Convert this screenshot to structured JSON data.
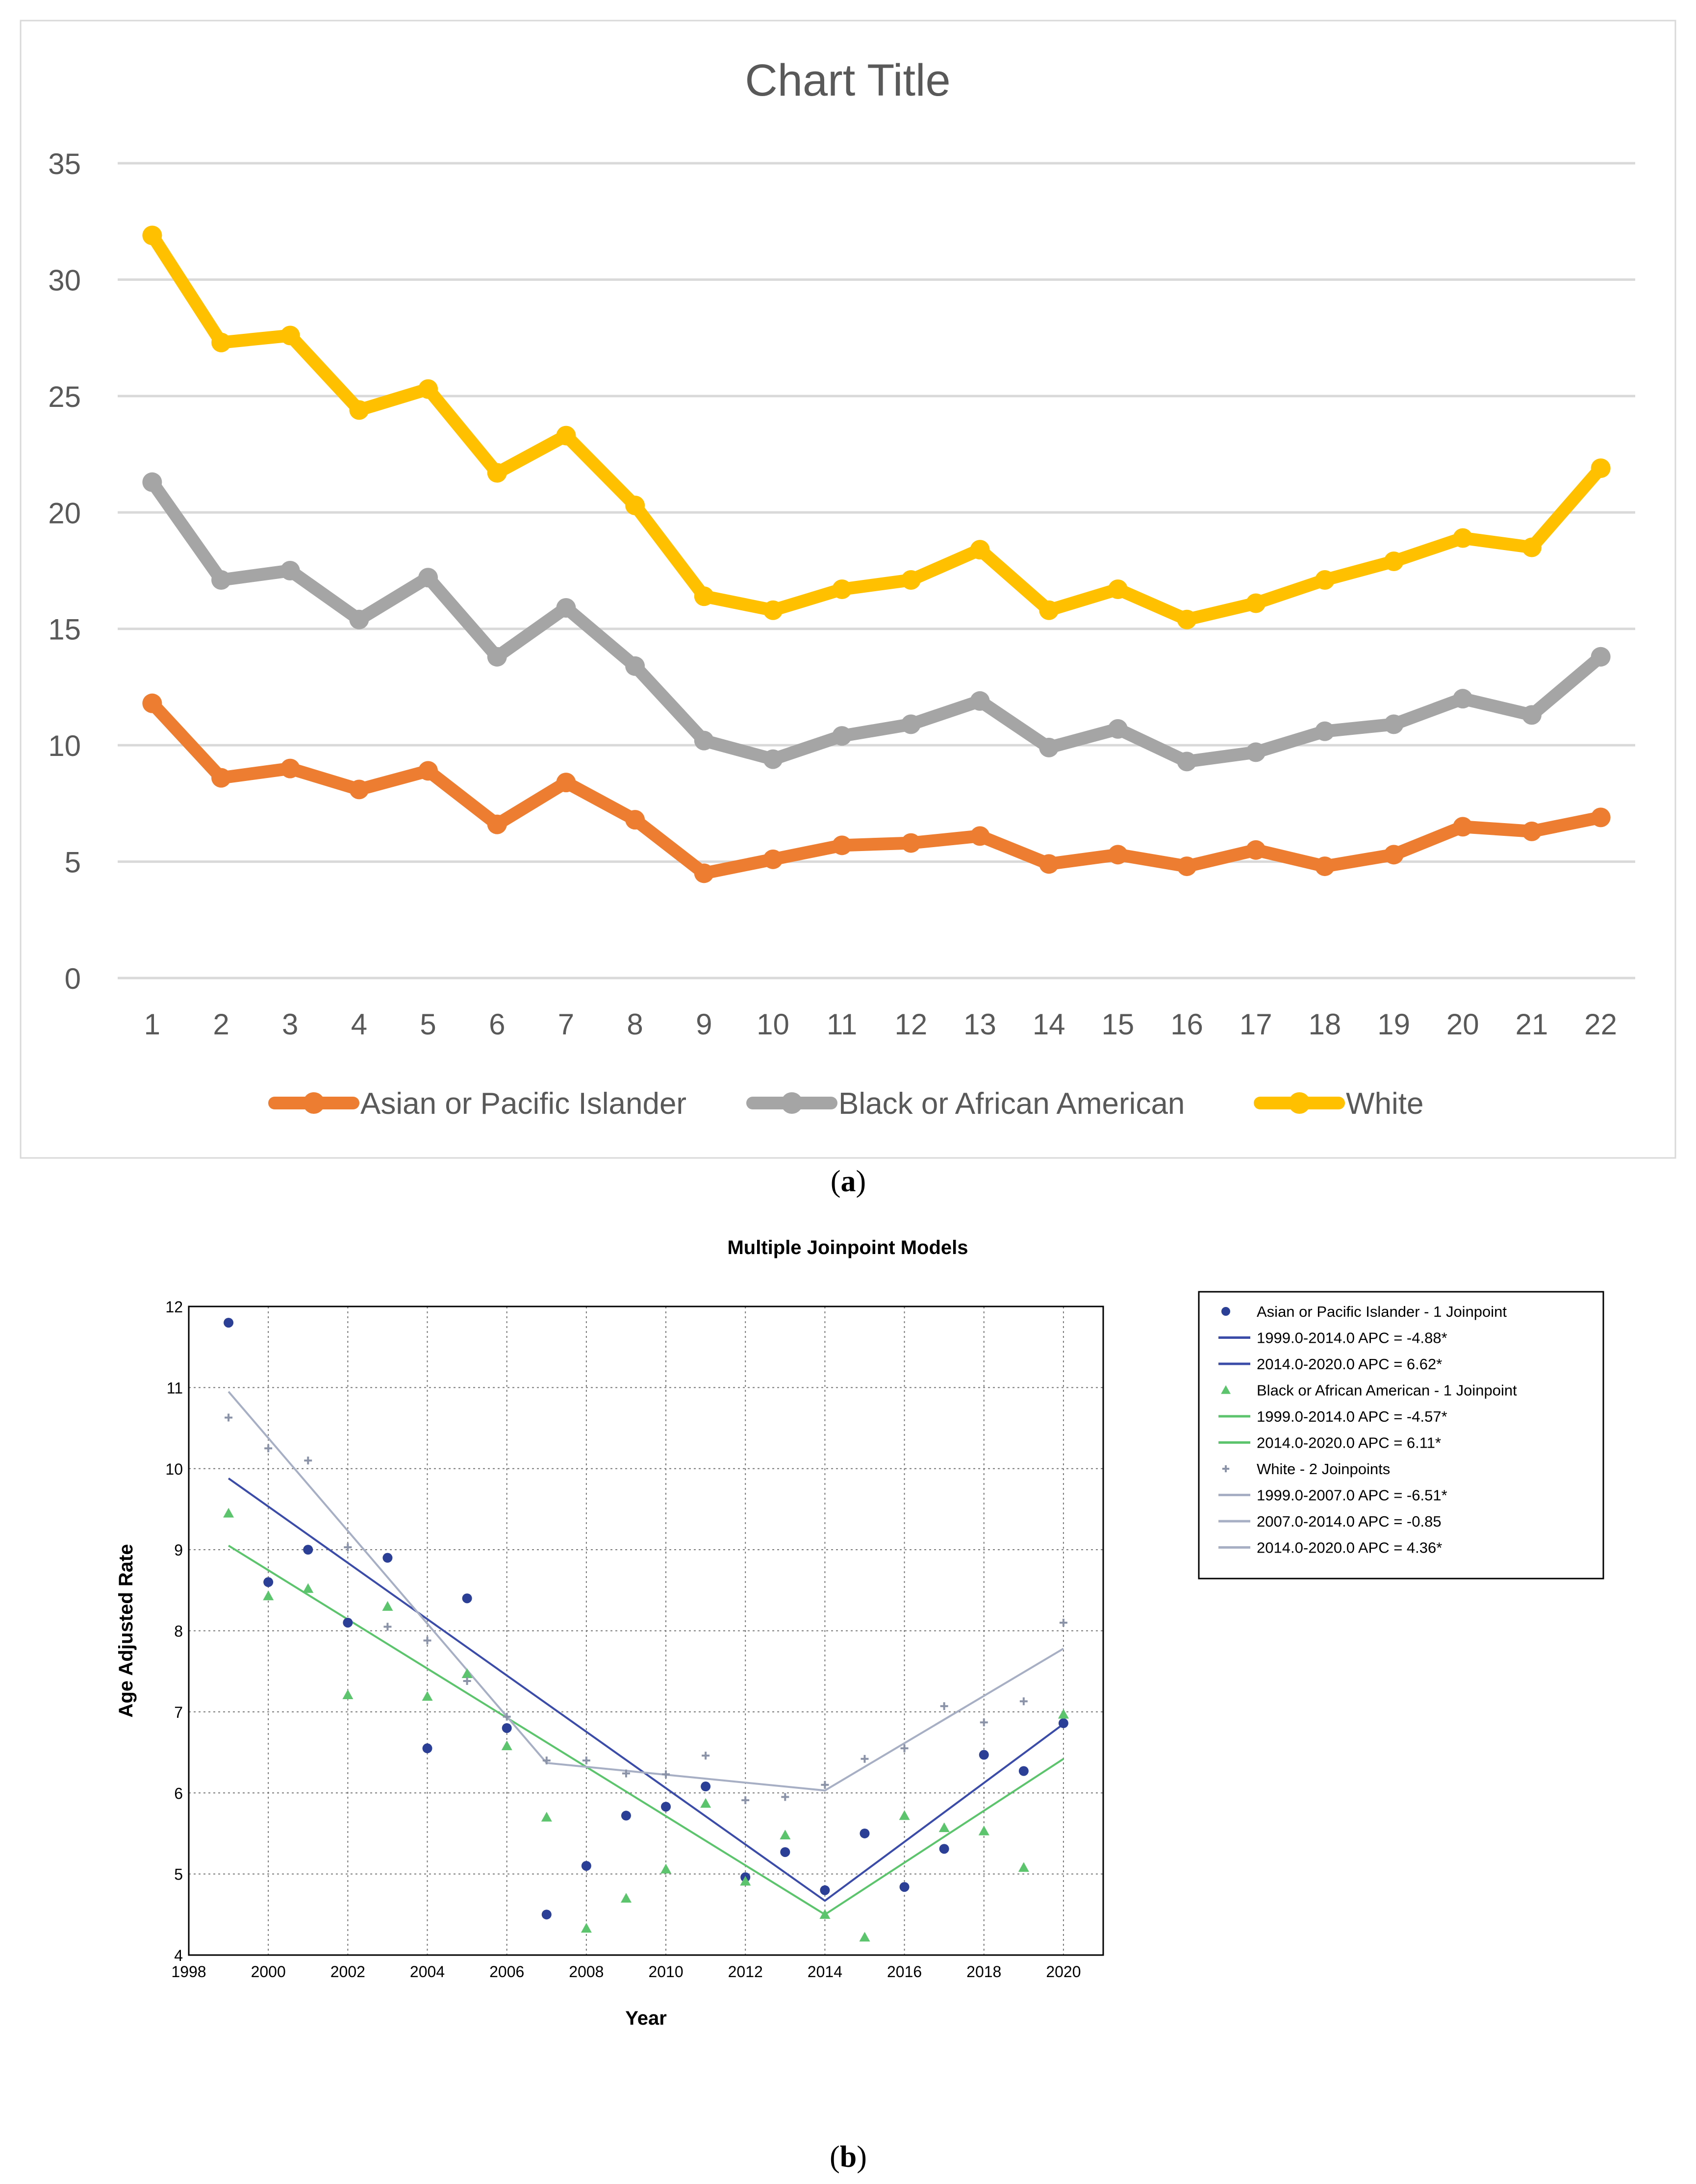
{
  "captions": {
    "a": "a",
    "b": "b"
  },
  "chart_data": [
    {
      "type": "line",
      "title": "Chart Title",
      "xlabel": "",
      "ylabel": "",
      "ylim": [
        0,
        35
      ],
      "yticks": [
        0,
        5,
        10,
        15,
        20,
        25,
        30,
        35
      ],
      "categories": [
        "1",
        "2",
        "3",
        "4",
        "5",
        "6",
        "7",
        "8",
        "9",
        "10",
        "11",
        "12",
        "13",
        "14",
        "15",
        "16",
        "17",
        "18",
        "19",
        "20",
        "21",
        "22"
      ],
      "grid": true,
      "legend": "bottom",
      "colors": {
        "asian": "#ED7D31",
        "black": "#A5A5A5",
        "white": "#FFC000",
        "title": "#595959",
        "tick": "#595959",
        "grid": "#D9D9D9",
        "border": "#D9D9D9"
      },
      "series": [
        {
          "name": "Asian or Pacific Islander",
          "key": "asian",
          "values": [
            11.8,
            8.6,
            9.0,
            8.1,
            8.9,
            6.6,
            8.4,
            6.8,
            4.5,
            5.1,
            5.7,
            5.8,
            6.1,
            4.9,
            5.3,
            4.8,
            5.5,
            4.8,
            5.3,
            6.5,
            6.3,
            6.9
          ]
        },
        {
          "name": "Black or African American",
          "key": "black",
          "values": [
            21.3,
            17.1,
            17.5,
            15.4,
            17.2,
            13.8,
            15.9,
            13.4,
            10.2,
            9.4,
            10.4,
            10.9,
            11.9,
            9.9,
            10.7,
            9.3,
            9.7,
            10.6,
            10.9,
            12.0,
            11.3,
            13.8
          ]
        },
        {
          "name": "White",
          "key": "white",
          "values": [
            31.9,
            27.3,
            27.6,
            24.4,
            25.3,
            21.7,
            23.3,
            20.3,
            16.4,
            15.8,
            16.7,
            17.1,
            18.4,
            15.8,
            16.7,
            15.4,
            16.1,
            17.1,
            17.9,
            18.9,
            18.5,
            21.9
          ]
        }
      ]
    },
    {
      "type": "scatter",
      "title": "Multiple Joinpoint Models",
      "xlabel": "Year",
      "ylabel": "Age Adjusted Rate",
      "xlim": [
        1998,
        2021
      ],
      "ylim": [
        4,
        12
      ],
      "xticks": [
        1998,
        2000,
        2002,
        2004,
        2006,
        2008,
        2010,
        2012,
        2014,
        2016,
        2018,
        2020
      ],
      "yticks": [
        4,
        5,
        6,
        7,
        8,
        9,
        10,
        11,
        12
      ],
      "grid": true,
      "legend": "right",
      "x": [
        1999,
        2000,
        2001,
        2002,
        2003,
        2004,
        2005,
        2006,
        2007,
        2008,
        2009,
        2010,
        2011,
        2012,
        2013,
        2014,
        2015,
        2016,
        2017,
        2018,
        2019,
        2020
      ],
      "colors": {
        "asian_pts": "#2B3F96",
        "asian_line": "#3B4BA8",
        "black_pts": "#5CC46C",
        "black_line": "#5CC46C",
        "white_pts": "#8A93A8",
        "white_line": "#A7AFC4"
      },
      "series": [
        {
          "name": "Asian or Pacific Islander - 1 Joinpoint",
          "key": "asian",
          "marker": "circle",
          "values": [
            11.8,
            8.6,
            9.0,
            8.1,
            8.9,
            6.55,
            8.4,
            6.8,
            4.5,
            5.1,
            5.72,
            5.83,
            6.08,
            4.96,
            5.27,
            4.8,
            5.5,
            4.84,
            5.31,
            6.47,
            6.27,
            6.86
          ],
          "fit": {
            "x": [
              1999,
              2014,
              2020
            ],
            "y": [
              9.88,
              4.67,
              6.85
            ]
          }
        },
        {
          "name": "Black or African American - 1 Joinpoint",
          "key": "black",
          "marker": "triangle",
          "values": [
            9.45,
            8.43,
            8.52,
            7.21,
            8.3,
            7.19,
            7.47,
            6.58,
            5.7,
            4.33,
            4.7,
            5.06,
            5.87,
            4.91,
            5.48,
            4.5,
            4.22,
            5.72,
            5.57,
            5.53,
            5.08,
            6.97
          ],
          "fit": {
            "x": [
              1999,
              2014,
              2020
            ],
            "y": [
              9.05,
              4.5,
              6.42
            ]
          }
        },
        {
          "name": "White - 2 Joinpoints",
          "key": "white",
          "marker": "plus",
          "values": [
            10.63,
            10.25,
            10.1,
            9.03,
            8.05,
            7.88,
            7.38,
            6.94,
            6.4,
            6.4,
            6.24,
            6.23,
            6.46,
            5.91,
            5.95,
            6.1,
            6.42,
            6.55,
            7.07,
            6.87,
            7.13,
            8.1
          ],
          "fit": {
            "x": [
              1999,
              2007,
              2014,
              2020
            ],
            "y": [
              10.95,
              6.37,
              6.03,
              7.78
            ]
          }
        }
      ],
      "legend_entries": [
        {
          "label": "Asian or Pacific Islander - 1 Joinpoint",
          "kind": "circle",
          "color_key": "asian_pts"
        },
        {
          "label": "1999.0-2014.0 APC  =  -4.88*",
          "kind": "line",
          "color_key": "asian_line"
        },
        {
          "label": "2014.0-2020.0 APC  =  6.62*",
          "kind": "line",
          "color_key": "asian_line"
        },
        {
          "label": "Black or African American - 1 Joinpoint",
          "kind": "triangle",
          "color_key": "black_pts"
        },
        {
          "label": "1999.0-2014.0 APC  =  -4.57*",
          "kind": "line",
          "color_key": "black_line"
        },
        {
          "label": "2014.0-2020.0 APC  =  6.11*",
          "kind": "line",
          "color_key": "black_line"
        },
        {
          "label": "White - 2 Joinpoints",
          "kind": "plus",
          "color_key": "white_pts"
        },
        {
          "label": "1999.0-2007.0 APC  =  -6.51*",
          "kind": "line",
          "color_key": "white_line"
        },
        {
          "label": "2007.0-2014.0 APC  =  -0.85",
          "kind": "line",
          "color_key": "white_line"
        },
        {
          "label": "2014.0-2020.0 APC  =  4.36*",
          "kind": "line",
          "color_key": "white_line"
        }
      ]
    }
  ]
}
